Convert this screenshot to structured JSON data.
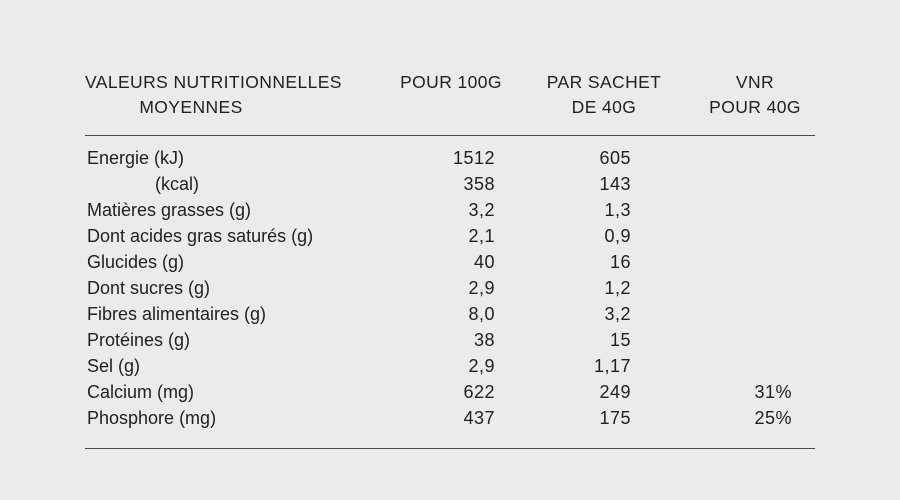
{
  "page": {
    "background_color": "#ebebeb",
    "text_color": "#212121",
    "rule_color": "#484848"
  },
  "table": {
    "header": {
      "col1_line1": "VALEURS NUTRITIONNELLES",
      "col1_line2": "MOYENNES",
      "col2": "POUR 100G",
      "col3_line1": "PAR SACHET",
      "col3_line2": "DE 40G",
      "col4_line1": "VNR",
      "col4_line2": "POUR 40G"
    },
    "rows": [
      {
        "label": "Energie (kJ)",
        "per100g": "1512",
        "per_sachet": "605",
        "vnr": "",
        "indent": false
      },
      {
        "label": "(kcal)",
        "per100g": "358",
        "per_sachet": "143",
        "vnr": "",
        "indent": true
      },
      {
        "label": "Matières grasses (g)",
        "per100g": "3,2",
        "per_sachet": "1,3",
        "vnr": "",
        "indent": false
      },
      {
        "label": "Dont acides gras saturés (g)",
        "per100g": "2,1",
        "per_sachet": "0,9",
        "vnr": "",
        "indent": false
      },
      {
        "label": "Glucides (g)",
        "per100g": "40",
        "per_sachet": "16",
        "vnr": "",
        "indent": false
      },
      {
        "label": "Dont sucres (g)",
        "per100g": "2,9",
        "per_sachet": "1,2",
        "vnr": "",
        "indent": false
      },
      {
        "label": "Fibres alimentaires (g)",
        "per100g": "8,0",
        "per_sachet": "3,2",
        "vnr": "",
        "indent": false
      },
      {
        "label": "Protéines (g)",
        "per100g": "38",
        "per_sachet": "15",
        "vnr": "",
        "indent": false
      },
      {
        "label": "Sel (g)",
        "per100g": "2,9",
        "per_sachet": "1,17",
        "vnr": "",
        "indent": false
      },
      {
        "label": "Calcium (mg)",
        "per100g": "622",
        "per_sachet": "249",
        "vnr": "31%",
        "indent": false
      },
      {
        "label": "Phosphore (mg)",
        "per100g": "437",
        "per_sachet": "175",
        "vnr": "25%",
        "indent": false
      }
    ]
  }
}
